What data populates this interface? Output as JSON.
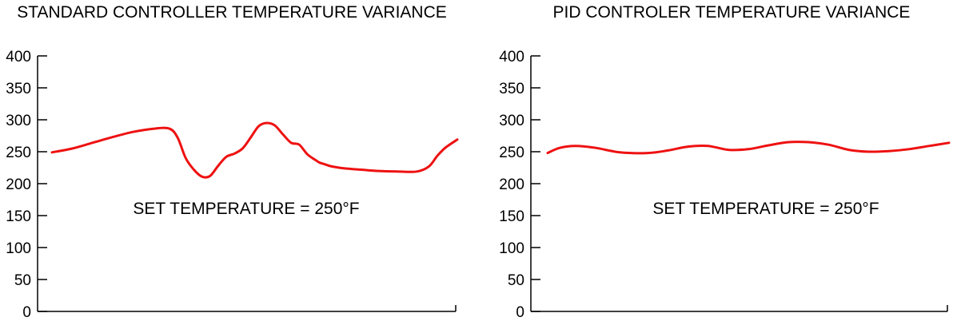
{
  "chart_data": [
    {
      "type": "line",
      "title": "STANDARD CONTROLLER TEMPERATURE VARIANCE",
      "xlabel": "",
      "ylabel": "",
      "ylim": [
        0,
        400
      ],
      "xlim": [
        0,
        100
      ],
      "y_ticks": [
        "400",
        "350",
        "300",
        "250",
        "200",
        "150",
        "100",
        "50",
        "0"
      ],
      "y_tick_values": [
        400,
        350,
        300,
        250,
        200,
        150,
        100,
        50,
        0
      ],
      "annotation": "SET TEMPERATURE = 250°F",
      "grid": false,
      "line_color": "#ee1111",
      "series": [
        {
          "x": [
            0,
            5,
            10,
            15,
            20,
            25,
            29,
            31,
            33,
            35,
            37,
            39,
            41,
            43,
            45,
            47,
            49,
            51,
            53,
            55,
            57,
            59,
            61,
            63,
            65,
            66,
            67,
            69,
            72,
            76,
            80,
            85,
            90,
            93,
            95,
            97,
            100
          ],
          "values": [
            249,
            255,
            264,
            273,
            281,
            286,
            286,
            272,
            240,
            222,
            211,
            212,
            228,
            242,
            247,
            255,
            272,
            290,
            295,
            291,
            277,
            264,
            261,
            246,
            237,
            233,
            231,
            227,
            224,
            222,
            220,
            219,
            219,
            227,
            243,
            256,
            269
          ]
        }
      ]
    },
    {
      "type": "line",
      "title": "PID CONTROLER TEMPERATURE VARIANCE",
      "xlabel": "",
      "ylabel": "",
      "ylim": [
        0,
        400
      ],
      "xlim": [
        0,
        100
      ],
      "y_ticks": [
        "400",
        "350",
        "300",
        "250",
        "200",
        "150",
        "100",
        "50",
        "0"
      ],
      "y_tick_values": [
        400,
        350,
        300,
        250,
        200,
        150,
        100,
        50,
        0
      ],
      "annotation": "SET TEMPERATURE = 250°F",
      "grid": false,
      "line_color": "#ee1111",
      "series": [
        {
          "x": [
            0,
            3,
            7,
            12,
            18,
            25,
            30,
            35,
            40,
            45,
            50,
            55,
            60,
            65,
            70,
            75,
            80,
            85,
            90,
            95,
            100
          ],
          "values": [
            248,
            256,
            259,
            256,
            249,
            248,
            252,
            258,
            259,
            253,
            254,
            260,
            265,
            265,
            261,
            253,
            250,
            251,
            254,
            259,
            264
          ]
        }
      ]
    }
  ]
}
